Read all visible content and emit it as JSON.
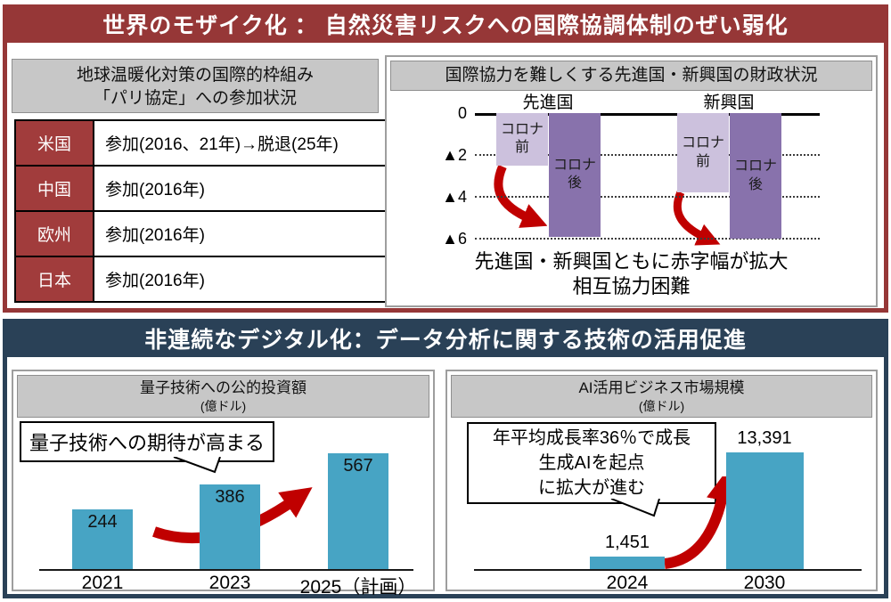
{
  "colors": {
    "section_red": "#963737",
    "section_navy": "#2a4157",
    "table_cell_red": "#a13c3c",
    "gray_header_bg": "#c7c7c7",
    "teal_bar": "#47a4c4",
    "light_purple_bar": "#ccc1dd",
    "dark_purple_bar": "#8872ac",
    "arrow_red": "#c00000"
  },
  "section_world": {
    "title": "世界のモザイク化 ： 自然災害リスクへの国際協調体制のぜい弱化",
    "paris_panel": {
      "header_line1": "地球温暖化対策の国際的枠組み",
      "header_line2": "「パリ協定」への参加状況",
      "rows": [
        {
          "region": "米国",
          "status": "参加(2016、21年)→脱退(25年)"
        },
        {
          "region": "中国",
          "status": "参加(2016年)"
        },
        {
          "region": "欧州",
          "status": "参加(2016年)"
        },
        {
          "region": "日本",
          "status": "参加(2016年)"
        }
      ]
    }
  },
  "section_digital": {
    "title": "非連続なデジタル化：データ分析に関する技術の活用促進"
  },
  "chart_data": [
    {
      "id": "fiscal_deficit",
      "type": "bar",
      "title": "国際協力を難しくする先進国・新興国の財政状況",
      "groups": [
        "先進国",
        "新興国"
      ],
      "series": [
        {
          "name": "コロナ前",
          "values": [
            -2.5,
            -3.8
          ],
          "color": "#ccc1dd"
        },
        {
          "name": "コロナ後",
          "values": [
            -5.9,
            -6.0
          ],
          "color": "#8872ac"
        }
      ],
      "ylim": [
        -6,
        0
      ],
      "yticks": [
        {
          "label": "0",
          "value": 0
        },
        {
          "label": "▲2",
          "value": -2
        },
        {
          "label": "▲4",
          "value": -4
        },
        {
          "label": "▲6",
          "value": -6
        }
      ],
      "grid": "dotted-horizontal",
      "legend_position": "inside-bars",
      "annotations": [
        "先進国・新興国ともに赤字幅が拡大",
        "相互協力困難"
      ]
    },
    {
      "id": "quantum_investment",
      "type": "bar",
      "title": "量子技術への公的投資額",
      "unit": "(億ドル)",
      "categories": [
        "2021",
        "2023",
        "2025（計画）"
      ],
      "values": [
        244,
        386,
        567
      ],
      "value_labels": [
        "244",
        "386",
        "567"
      ],
      "bar_color": "#47a4c4",
      "callout": "量子技術への期待が高まる",
      "grid": "off"
    },
    {
      "id": "ai_market",
      "type": "bar",
      "title": "AI活用ビジネス市場規模",
      "unit": "(億ドル)",
      "categories": [
        "2024",
        "2030"
      ],
      "values": [
        1451,
        13391
      ],
      "value_labels": [
        "1,451",
        "13,391"
      ],
      "bar_color": "#47a4c4",
      "callout_lines": [
        "年平均成長率36％で成長",
        "生成AIを起点",
        "に拡大が進む"
      ],
      "grid": "off"
    }
  ]
}
